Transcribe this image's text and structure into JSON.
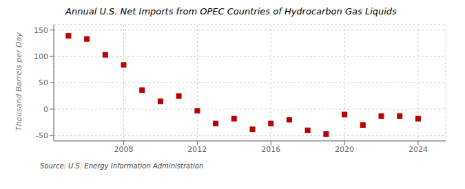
{
  "chart_data": {
    "type": "scatter",
    "title": "Annual U.S. Net Imports from OPEC Countries of Hydrocarbon Gas Liquids",
    "y_label": "Thousand Barrels per Day",
    "annotations": [
      "Source: U.S. Energy Information Administration"
    ],
    "x": [
      2005,
      2006,
      2007,
      2008,
      2009,
      2010,
      2011,
      2012,
      2013,
      2014,
      2015,
      2016,
      2017,
      2018,
      2019,
      2020,
      2021,
      2022,
      2023,
      2024
    ],
    "values": [
      139,
      133,
      103,
      84,
      36,
      15,
      25,
      -3,
      -27,
      -18,
      -38,
      -27,
      -20,
      -40,
      -47,
      -10,
      -30,
      -13,
      -13,
      -18
    ],
    "color": "#bb0000",
    "marker": "square",
    "xlim": [
      2004.2,
      2025.5
    ],
    "xticks": [
      2008,
      2012,
      2016,
      2020,
      2024
    ],
    "ylim": [
      -60,
      160
    ],
    "yticks": [
      -50,
      0,
      50,
      100,
      150
    ],
    "grid": true
  }
}
